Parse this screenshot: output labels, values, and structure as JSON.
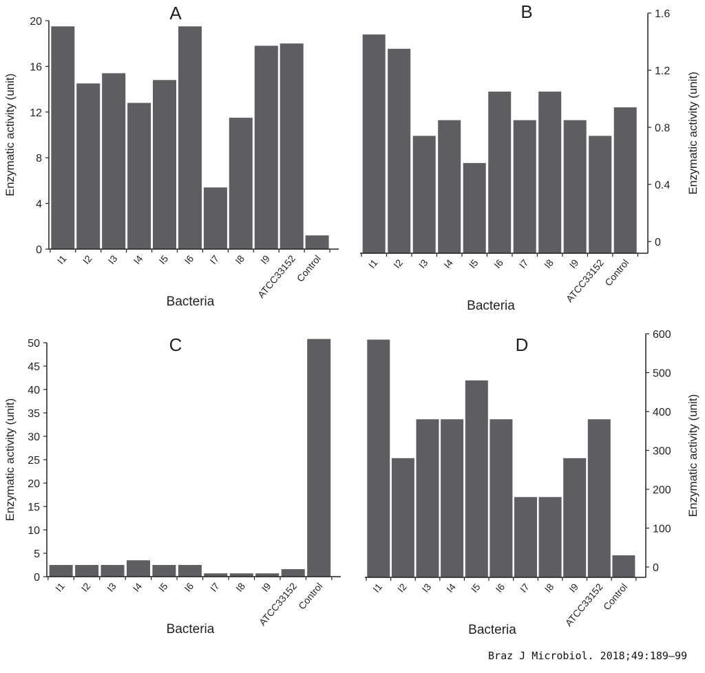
{
  "citation": "Braz J Microbiol. 2018;49:189–99",
  "bar_color": "#5e5e62",
  "chart_data": [
    {
      "type": "bar",
      "panel": "A",
      "title": "A",
      "xlabel": "Bacteria",
      "ylabel": "Enzymatic activity (unit)",
      "y_axis_side": "left",
      "ylim": [
        0,
        20
      ],
      "yticks": [
        0,
        4,
        8,
        12,
        16,
        20
      ],
      "ytick_labels": [
        "0",
        "4",
        "8",
        "12",
        "16",
        "20"
      ],
      "categories": [
        "I1",
        "I2",
        "I3",
        "I4",
        "I5",
        "I6",
        "I7",
        "I8",
        "I9",
        "ATCC33152",
        "Control"
      ],
      "values": [
        19.5,
        14.5,
        15.4,
        12.8,
        14.8,
        19.5,
        5.4,
        11.5,
        17.8,
        18.0,
        1.2
      ],
      "grid": false
    },
    {
      "type": "bar",
      "panel": "B",
      "title": "B",
      "xlabel": "Bacteria",
      "ylabel": "Enzymatic activity (unit)",
      "y_axis_side": "right",
      "ylim": [
        0,
        1.6
      ],
      "yticks": [
        0,
        0.4,
        0.8,
        1.2,
        1.6
      ],
      "ytick_labels": [
        "0",
        "0.4",
        "0.8",
        "1.2",
        "1.6"
      ],
      "categories": [
        "I1",
        "I2",
        "I3",
        "I4",
        "I5",
        "I6",
        "I7",
        "I8",
        "I9",
        "ATCC33152",
        "Control"
      ],
      "values": [
        1.45,
        1.35,
        0.74,
        0.85,
        0.55,
        1.05,
        0.85,
        1.05,
        0.85,
        0.74,
        0.94
      ],
      "grid": false
    },
    {
      "type": "bar",
      "panel": "C",
      "title": "C",
      "xlabel": "Bacteria",
      "ylabel": "Enzymatic activity (unit)",
      "y_axis_side": "left",
      "ylim": [
        0,
        50
      ],
      "yticks": [
        0,
        5,
        10,
        15,
        20,
        25,
        30,
        35,
        40,
        45,
        50
      ],
      "ytick_labels": [
        "0",
        "5",
        "10",
        "15",
        "20",
        "25",
        "30",
        "35",
        "40",
        "45",
        "50"
      ],
      "categories": [
        "I1",
        "I2",
        "I3",
        "I4",
        "I5",
        "I6",
        "I7",
        "I8",
        "I9",
        "ATCC33152",
        "Control"
      ],
      "values": [
        2.5,
        2.5,
        2.5,
        3.5,
        2.5,
        2.5,
        0.7,
        0.7,
        0.7,
        1.6,
        50.8
      ],
      "grid": false
    },
    {
      "type": "bar",
      "panel": "D",
      "title": "D",
      "xlabel": "Bacteria",
      "ylabel": "Enzymatic activity (unit)",
      "y_axis_side": "right",
      "ylim": [
        0,
        600
      ],
      "yticks": [
        0,
        100,
        200,
        300,
        400,
        500,
        600
      ],
      "ytick_labels": [
        "0",
        "100",
        "200",
        "300",
        "400",
        "500",
        "600"
      ],
      "categories": [
        "I1",
        "I2",
        "I3",
        "I4",
        "I5",
        "I6",
        "I7",
        "I8",
        "I9",
        "ATCC33152",
        "Control"
      ],
      "values": [
        585,
        280,
        380,
        380,
        480,
        380,
        180,
        180,
        280,
        380,
        30
      ],
      "grid": false
    }
  ]
}
